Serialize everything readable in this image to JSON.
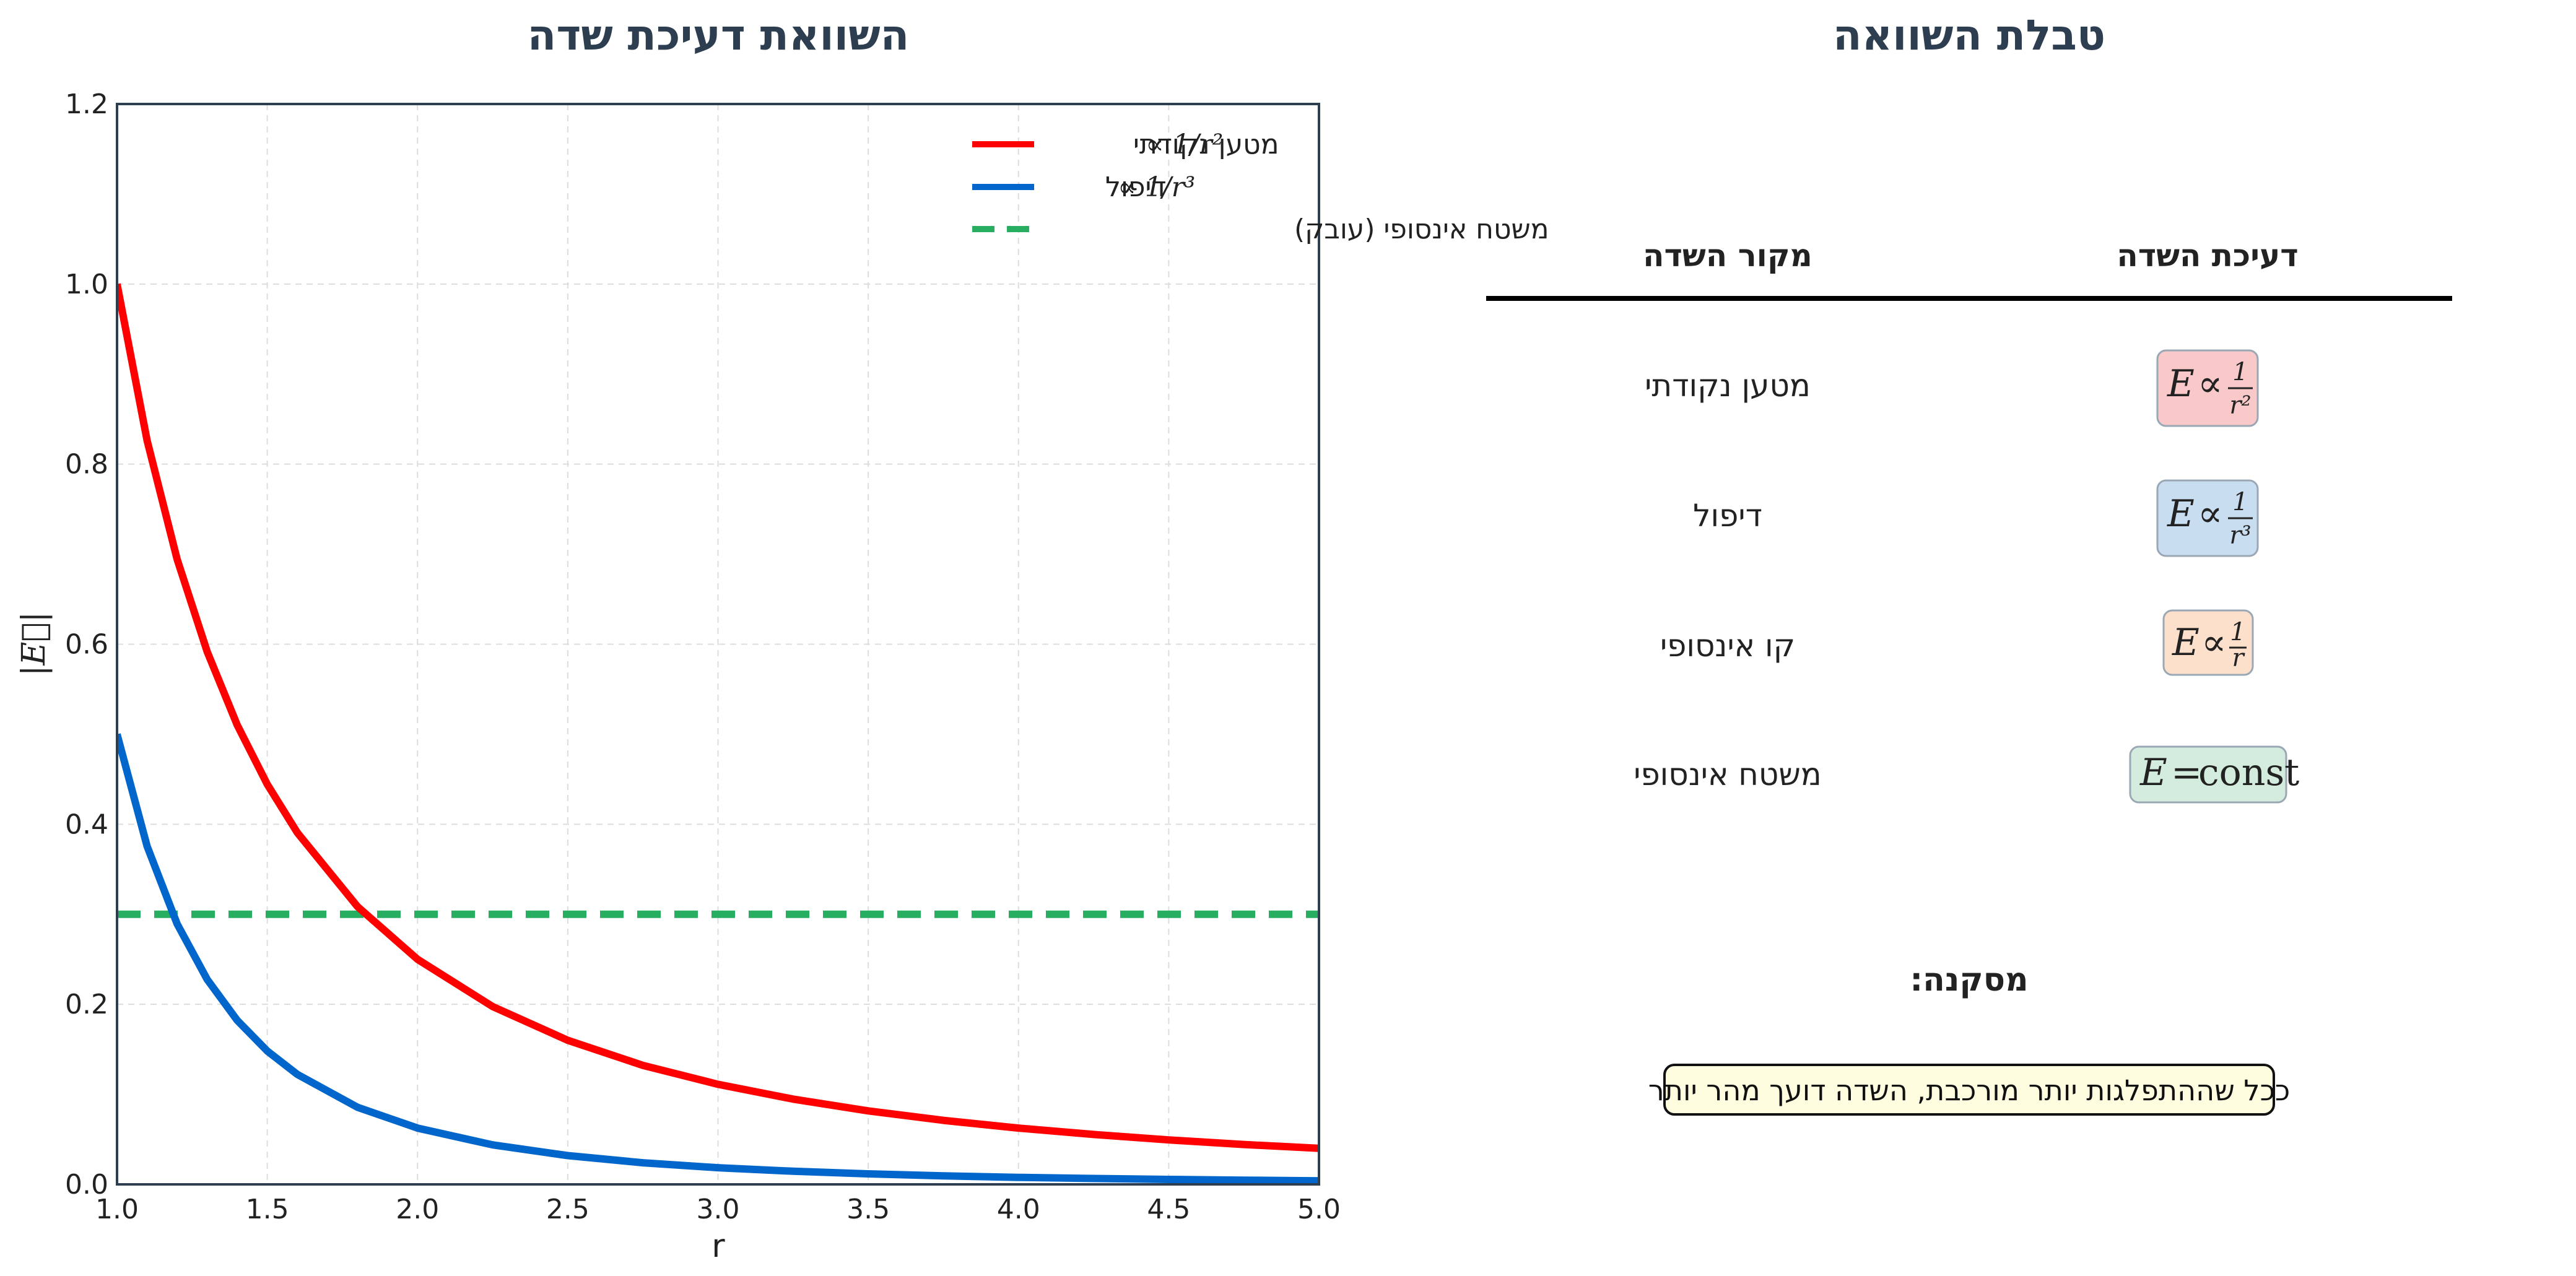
{
  "colors": {
    "point_charge": "#ff0000",
    "dipole": "#0066cc",
    "infinite_plane": "#27ae60",
    "title": "#2c3e50",
    "axes_frame": "#2c3e50",
    "box_point": "#f8c9c8",
    "box_dipole": "#c9ddf0",
    "box_line": "#fde0cb",
    "box_plane": "#d4ecdd",
    "conclusion_bg": "#fffde0"
  },
  "left_panel": {
    "title": "השוואת דעיכת שדה"
  },
  "right_panel": {
    "title": "טבלת השוואה",
    "headers": [
      "מקור השדה",
      "דעיכת השדה"
    ],
    "rows": [
      {
        "source": "מטען נקודתי",
        "formula": {
          "lhs": "E",
          "op": "∝",
          "num": "1",
          "den": "r²",
          "color_key": "box_point"
        }
      },
      {
        "source": "דיפול",
        "formula": {
          "lhs": "E",
          "op": "∝",
          "num": "1",
          "den": "r³",
          "color_key": "box_dipole"
        }
      },
      {
        "source": "קו אינסופי",
        "formula": {
          "lhs": "E",
          "op": "∝",
          "num": "1",
          "den": "r",
          "color_key": "box_line"
        }
      },
      {
        "source": "משטח אינסופי",
        "formula": {
          "lhs": "E",
          "op": "=",
          "rhs": "const",
          "color_key": "box_plane"
        }
      }
    ],
    "conclusion_label": "מסקנה:",
    "conclusion_text": "ככל שההתפלגות יותר מורכבת, השדה דועך מהר יותר"
  },
  "chart_data": {
    "type": "line",
    "title": "השוואת דעיכת שדה",
    "xlabel": "r",
    "ylabel": "|E⃗|",
    "xlim": [
      1.0,
      5.0
    ],
    "ylim": [
      0.0,
      1.2
    ],
    "x_ticks": [
      "1.0",
      "1.5",
      "2.0",
      "2.5",
      "3.0",
      "3.5",
      "4.0",
      "4.5",
      "5.0"
    ],
    "y_ticks": [
      "0.0",
      "0.2",
      "0.4",
      "0.6",
      "0.8",
      "1.0",
      "1.2"
    ],
    "grid": true,
    "legend_position": "top-right",
    "series": [
      {
        "name": "מטען נקודתי ∝ 1/r²",
        "legend_label": "מטען נקודתי",
        "legend_math": "∝ 1/r²",
        "style": "solid",
        "color_key": "point_charge",
        "x": [
          1.0,
          1.1,
          1.2,
          1.3,
          1.4,
          1.5,
          1.6,
          1.8,
          2.0,
          2.25,
          2.5,
          2.75,
          3.0,
          3.25,
          3.5,
          3.75,
          4.0,
          4.25,
          4.5,
          4.75,
          5.0
        ],
        "y": [
          1.0,
          0.8264,
          0.6944,
          0.5917,
          0.5102,
          0.4444,
          0.3906,
          0.3086,
          0.25,
          0.1975,
          0.16,
          0.1322,
          0.1111,
          0.0947,
          0.0816,
          0.0711,
          0.0625,
          0.0554,
          0.0494,
          0.0443,
          0.04
        ]
      },
      {
        "name": "דיפול ∝ 1/r³",
        "legend_label": "דיפול",
        "legend_math": "∝ 1/r³",
        "style": "solid",
        "color_key": "dipole",
        "x": [
          1.0,
          1.1,
          1.2,
          1.3,
          1.4,
          1.5,
          1.6,
          1.8,
          2.0,
          2.25,
          2.5,
          2.75,
          3.0,
          3.25,
          3.5,
          3.75,
          4.0,
          4.25,
          4.5,
          4.75,
          5.0
        ],
        "y": [
          0.5,
          0.3757,
          0.2894,
          0.2276,
          0.1822,
          0.1481,
          0.1221,
          0.0857,
          0.0625,
          0.0439,
          0.032,
          0.024,
          0.0185,
          0.0146,
          0.0117,
          0.0095,
          0.0078,
          0.0065,
          0.0055,
          0.0047,
          0.004
        ]
      },
      {
        "name": "משטח אינסופי (עובק)",
        "legend_label": "משטח אינסופי (עובק)",
        "legend_math": "",
        "style": "dashed",
        "color_key": "infinite_plane",
        "x": [
          1.0,
          5.0
        ],
        "y": [
          0.3,
          0.3
        ]
      }
    ]
  }
}
